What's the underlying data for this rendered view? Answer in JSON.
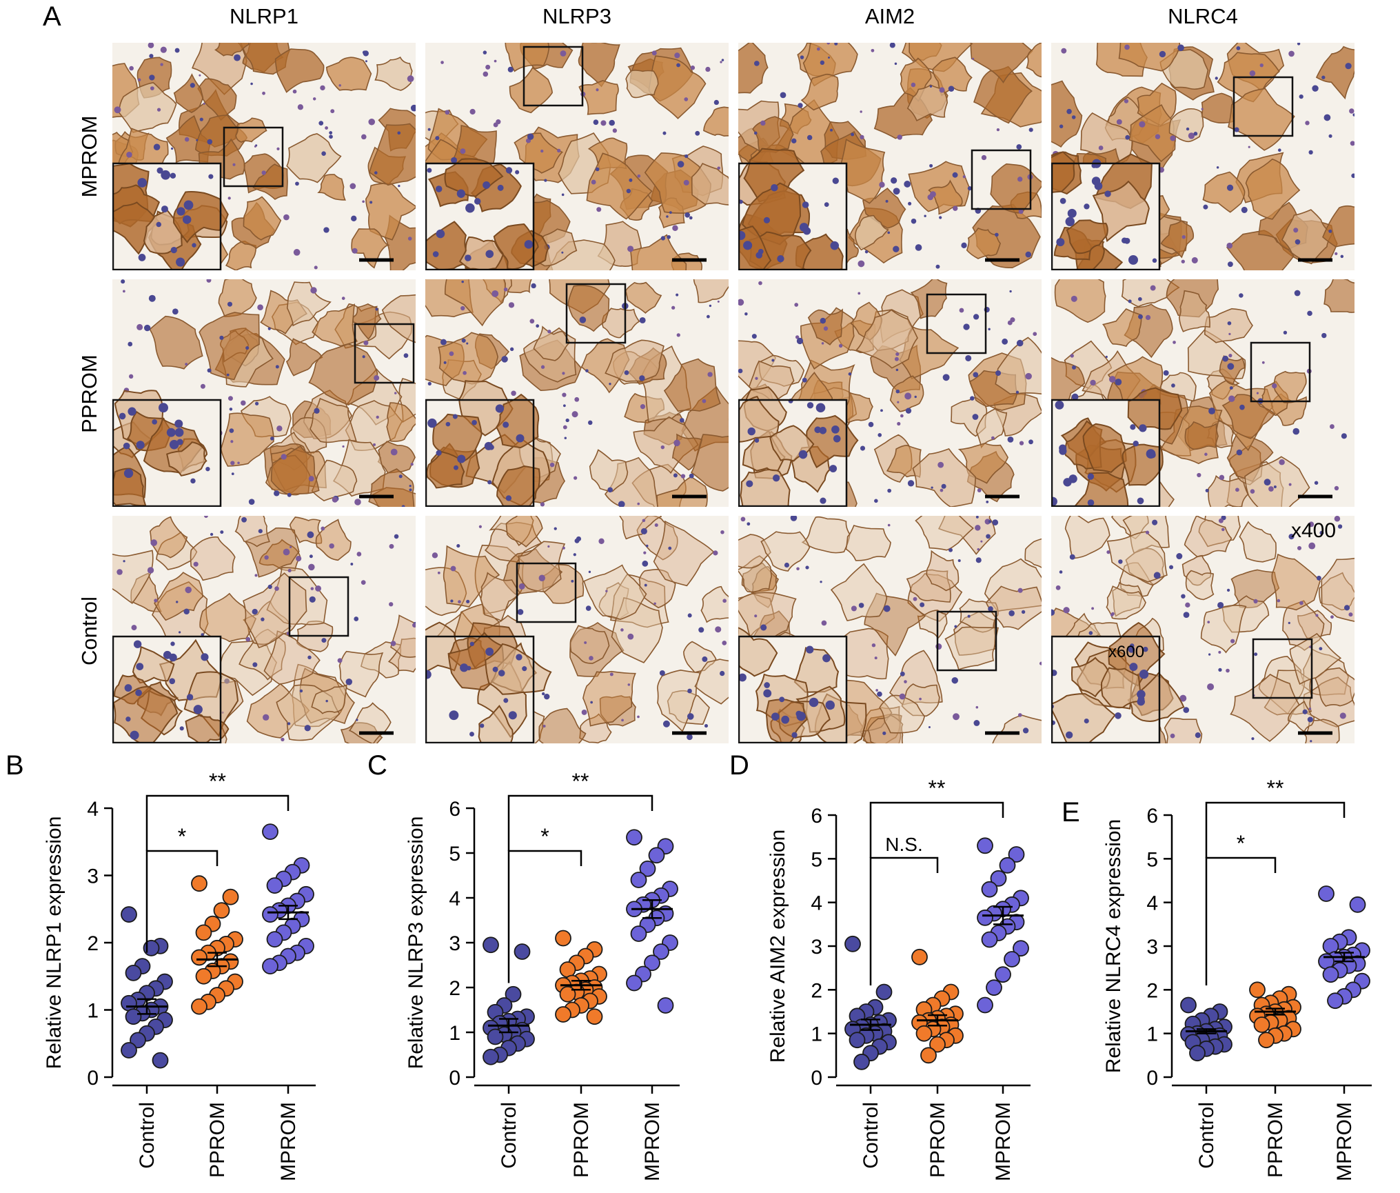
{
  "figure": {
    "panel_a_label": "A",
    "columns": [
      "NLRP1",
      "NLRP3",
      "AIM2",
      "NLRC4"
    ],
    "rows": [
      "MPROM",
      "PPROM",
      "Control"
    ],
    "magnification_main": "x400",
    "magnification_inset": "x600"
  },
  "colors": {
    "control": "#4a4aa0",
    "pprom": "#f07a2a",
    "mprom": "#6c63d8",
    "stain_brown": "#a8652d",
    "stain_blue": "#4a4892",
    "background": "#f5f1ea"
  },
  "chart_data": [
    {
      "panel": "B",
      "type": "scatter",
      "categories": [
        "Control",
        "PPROM",
        "MPROM"
      ],
      "ylabel": "Relative NLRP1 expression",
      "ylim": [
        0,
        4
      ],
      "yticks": [
        0,
        1,
        2,
        3,
        4
      ],
      "means": [
        1.05,
        1.75,
        2.45
      ],
      "sem": [
        0.11,
        0.1,
        0.1
      ],
      "series": [
        {
          "values": [
            2.42,
            1.95,
            1.92,
            1.65,
            1.55,
            1.42,
            1.32,
            1.25,
            1.15,
            1.1,
            1.05,
            1.0,
            0.95,
            0.9,
            0.85,
            0.75,
            0.65,
            0.55,
            0.4,
            0.25
          ]
        },
        {
          "values": [
            2.88,
            2.68,
            2.48,
            2.28,
            2.15,
            2.05,
            1.98,
            1.92,
            1.85,
            1.78,
            1.72,
            1.65,
            1.58,
            1.5,
            1.42,
            1.32,
            1.22,
            1.12,
            1.05
          ]
        },
        {
          "values": [
            3.65,
            3.15,
            3.05,
            2.95,
            2.85,
            2.72,
            2.62,
            2.55,
            2.48,
            2.42,
            2.35,
            2.25,
            2.15,
            2.05,
            1.95,
            1.85,
            1.8,
            1.7,
            1.65
          ]
        }
      ],
      "comparisons": [
        {
          "from": "Control",
          "to": "PPROM",
          "label": "*"
        },
        {
          "from": "Control",
          "to": "MPROM",
          "label": "**"
        }
      ]
    },
    {
      "panel": "C",
      "type": "scatter",
      "categories": [
        "Control",
        "PPROM",
        "MPROM"
      ],
      "ylabel": "Relative NLRP3 expression",
      "ylim": [
        0,
        6
      ],
      "yticks": [
        0,
        1,
        2,
        3,
        4,
        5,
        6
      ],
      "means": [
        1.15,
        2.05,
        3.75
      ],
      "sem": [
        0.15,
        0.1,
        0.2
      ],
      "series": [
        {
          "values": [
            2.95,
            2.8,
            1.85,
            1.6,
            1.45,
            1.35,
            1.3,
            1.25,
            1.2,
            1.1,
            1.05,
            1.0,
            0.95,
            0.9,
            0.85,
            0.75,
            0.65,
            0.5,
            0.45
          ]
        },
        {
          "values": [
            3.1,
            2.85,
            2.7,
            2.55,
            2.4,
            2.3,
            2.2,
            2.15,
            2.1,
            2.05,
            2.0,
            1.95,
            1.9,
            1.85,
            1.8,
            1.7,
            1.6,
            1.5,
            1.4,
            1.35
          ]
        },
        {
          "values": [
            5.35,
            5.15,
            4.95,
            4.65,
            4.4,
            4.2,
            4.05,
            3.95,
            3.85,
            3.75,
            3.65,
            3.55,
            3.4,
            3.2,
            3.0,
            2.8,
            2.55,
            2.3,
            2.1,
            1.6
          ]
        }
      ],
      "comparisons": [
        {
          "from": "Control",
          "to": "PPROM",
          "label": "*"
        },
        {
          "from": "Control",
          "to": "MPROM",
          "label": "**"
        }
      ]
    },
    {
      "panel": "D",
      "type": "scatter",
      "categories": [
        "Control",
        "PPROM",
        "MPROM"
      ],
      "ylabel": "Relative AIM2 expression",
      "ylim": [
        0,
        6
      ],
      "yticks": [
        0,
        1,
        2,
        3,
        4,
        5,
        6
      ],
      "means": [
        1.2,
        1.3,
        3.7
      ],
      "sem": [
        0.12,
        0.12,
        0.2
      ],
      "series": [
        {
          "values": [
            3.05,
            1.95,
            1.6,
            1.5,
            1.4,
            1.3,
            1.25,
            1.2,
            1.15,
            1.1,
            1.05,
            1.0,
            0.95,
            0.85,
            0.8,
            0.7,
            0.55,
            0.35
          ]
        },
        {
          "values": [
            2.75,
            1.95,
            1.8,
            1.65,
            1.55,
            1.45,
            1.4,
            1.35,
            1.3,
            1.25,
            1.2,
            1.15,
            1.1,
            1.0,
            0.95,
            0.85,
            0.75,
            0.5
          ]
        },
        {
          "values": [
            5.3,
            5.1,
            4.85,
            4.55,
            4.3,
            4.1,
            3.95,
            3.85,
            3.75,
            3.65,
            3.55,
            3.45,
            3.3,
            3.15,
            2.95,
            2.7,
            2.35,
            2.05,
            1.65
          ]
        }
      ],
      "comparisons": [
        {
          "from": "Control",
          "to": "PPROM",
          "label": "N.S."
        },
        {
          "from": "Control",
          "to": "MPROM",
          "label": "**"
        }
      ]
    },
    {
      "panel": "E",
      "type": "scatter",
      "categories": [
        "Control",
        "PPROM",
        "MPROM"
      ],
      "ylabel": "Relative NLRC4 expression",
      "ylim": [
        0,
        6
      ],
      "yticks": [
        0,
        1,
        2,
        3,
        4,
        5,
        6
      ],
      "means": [
        1.05,
        1.5,
        2.75
      ],
      "sem": [
        0.05,
        0.07,
        0.1
      ],
      "series": [
        {
          "values": [
            1.65,
            1.5,
            1.4,
            1.3,
            1.22,
            1.15,
            1.1,
            1.05,
            1.0,
            0.98,
            0.95,
            0.9,
            0.85,
            0.8,
            0.75,
            0.7,
            0.65,
            0.55
          ]
        },
        {
          "values": [
            2.0,
            1.9,
            1.8,
            1.7,
            1.65,
            1.6,
            1.55,
            1.5,
            1.45,
            1.4,
            1.35,
            1.3,
            1.25,
            1.2,
            1.1,
            1.0,
            0.95,
            0.85
          ]
        },
        {
          "values": [
            4.2,
            3.95,
            3.2,
            3.1,
            3.0,
            2.9,
            2.8,
            2.75,
            2.7,
            2.65,
            2.6,
            2.55,
            2.45,
            2.35,
            2.2,
            2.0,
            1.85,
            1.75
          ]
        }
      ],
      "comparisons": [
        {
          "from": "Control",
          "to": "PPROM",
          "label": "*"
        },
        {
          "from": "Control",
          "to": "MPROM",
          "label": "**"
        }
      ]
    }
  ]
}
